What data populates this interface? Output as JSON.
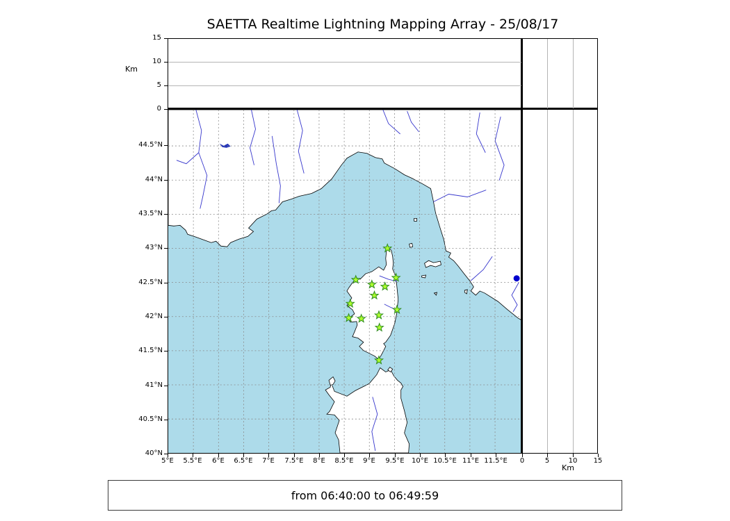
{
  "title": "SAETTA Realtime Lightning Mapping Array - 25/08/17",
  "footer": {
    "time_range": "from 06:40:00 to 06:49:59"
  },
  "axes": {
    "altitude": {
      "label": "Km",
      "tick_labels": [
        "0",
        "5",
        "10",
        "15"
      ],
      "tick_values": [
        0,
        5,
        10,
        15
      ],
      "range": [
        0,
        15
      ]
    },
    "longitude": {
      "tick_labels": [
        "5°E",
        "5.5°E",
        "6°E",
        "6.5°E",
        "7°E",
        "7.5°E",
        "8°E",
        "8.5°E",
        "9°E",
        "9.5°E",
        "10°E",
        "10.5°E",
        "11°E",
        "11.5°E"
      ],
      "tick_values": [
        5,
        5.5,
        6,
        6.5,
        7,
        7.5,
        8,
        8.5,
        9,
        9.5,
        10,
        10.5,
        11,
        11.5
      ]
    },
    "latitude": {
      "tick_labels": [
        "44.5°N",
        "44°N",
        "43.5°N",
        "43°N",
        "42.5°N",
        "42°N",
        "41.5°N",
        "41°N",
        "40.5°N",
        "40°N"
      ],
      "tick_values": [
        44.5,
        44,
        43.5,
        43,
        42.5,
        42,
        41.5,
        41,
        40.5,
        40
      ]
    }
  },
  "colors": {
    "sea": "#addbea",
    "land": "#ffffff",
    "coastline": "#000000",
    "river": "#3535cc",
    "lake": "#2233bb",
    "graticule": "#8a8a8a",
    "panel_gridline": "#b4b4b4",
    "station_fill": "#adff2f",
    "station_edge": "#2e8b1e",
    "detection": "#0000cd"
  },
  "chart_data": {
    "type": "scatter",
    "title": "SAETTA Realtime Lightning Mapping Array - 25/08/17",
    "time_window": "from 06:40:00 to 06:49:59",
    "layout_hint": "altitude-vs-longitude panel on top, lat/lon map in center, altitude-vs-latitude panel on right, all altitude panels empty",
    "map_extent": {
      "lon_min_deg_e": 5.0,
      "lon_max_deg_e": 12.0,
      "lat_min_deg_n": 40.0,
      "lat_max_deg_n": 45.0
    },
    "altitude_km_range": [
      0,
      15
    ],
    "altitude_km_ticks": [
      0,
      5,
      10,
      15
    ],
    "graticule_step_deg": 0.5,
    "stations": {
      "marker": "star",
      "points": [
        {
          "lon": 9.36,
          "lat": 43.0
        },
        {
          "lon": 8.73,
          "lat": 42.54
        },
        {
          "lon": 9.05,
          "lat": 42.47
        },
        {
          "lon": 9.31,
          "lat": 42.44
        },
        {
          "lon": 9.53,
          "lat": 42.57
        },
        {
          "lon": 9.1,
          "lat": 42.31
        },
        {
          "lon": 8.62,
          "lat": 42.19
        },
        {
          "lon": 9.55,
          "lat": 42.1
        },
        {
          "lon": 8.59,
          "lat": 41.98
        },
        {
          "lon": 8.84,
          "lat": 41.97
        },
        {
          "lon": 9.19,
          "lat": 42.02
        },
        {
          "lon": 9.2,
          "lat": 41.84
        },
        {
          "lon": 9.19,
          "lat": 41.36
        }
      ]
    },
    "detections": {
      "marker": "circle",
      "points": [
        {
          "lon": 11.93,
          "lat": 42.56
        }
      ]
    }
  }
}
